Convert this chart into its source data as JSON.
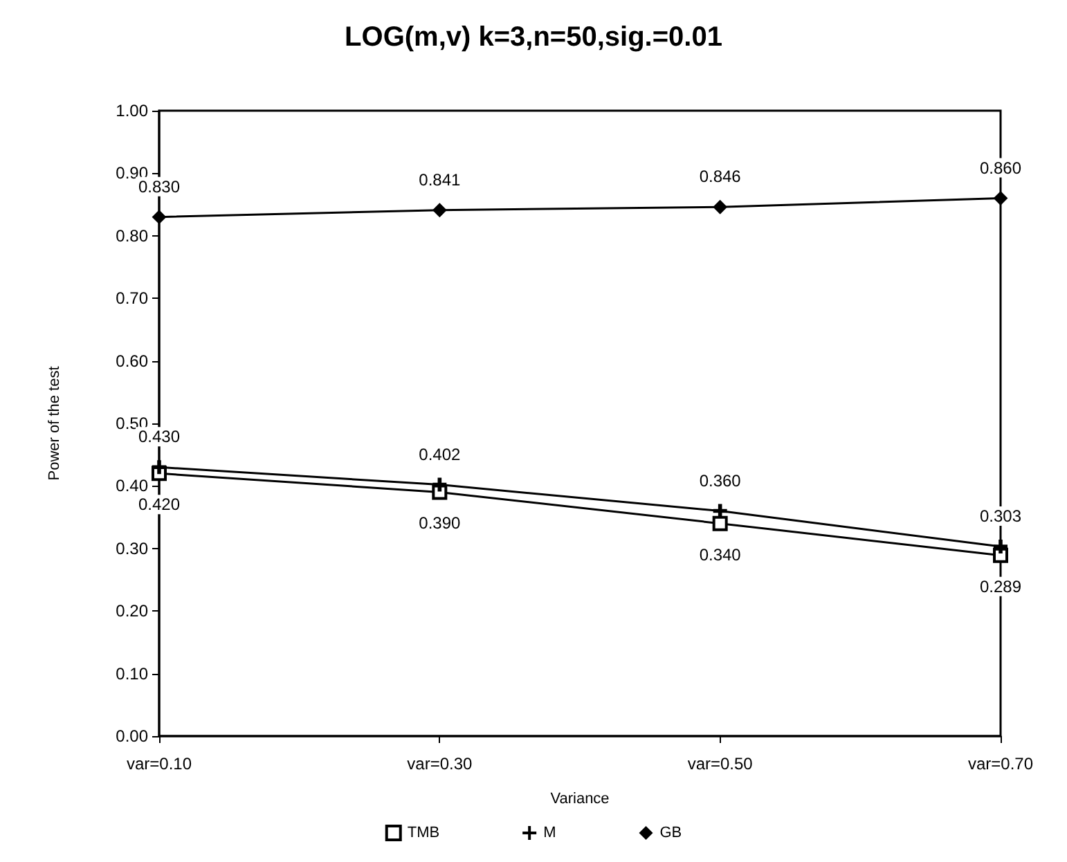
{
  "chart_data": {
    "type": "line",
    "title": "LOG(m,v) k=3,n=50,sig.=0.01",
    "xlabel": "Variance",
    "ylabel": "Power of the test",
    "categories": [
      "var=0.10",
      "var=0.30",
      "var=0.50",
      "var=0.70"
    ],
    "series": [
      {
        "name": "TMB",
        "color": "#000000",
        "marker": "square",
        "values": [
          0.42,
          0.39,
          0.34,
          0.289
        ],
        "value_labels": [
          "0.420",
          "0.390",
          "0.340",
          "0.289"
        ]
      },
      {
        "name": "M",
        "color": "#000000",
        "marker": "cross",
        "values": [
          0.43,
          0.402,
          0.36,
          0.303
        ],
        "value_labels": [
          "0.430",
          "0.402",
          "0.360",
          "0.303"
        ]
      },
      {
        "name": "GB",
        "color": "#000000",
        "marker": "diamond",
        "values": [
          0.83,
          0.841,
          0.846,
          0.86
        ],
        "value_labels": [
          "0.830",
          "0.841",
          "0.846",
          "0.860"
        ]
      }
    ],
    "ylim": [
      0,
      1
    ],
    "yticks": [
      {
        "value": 0,
        "label": "0.00"
      },
      {
        "value": 0.1,
        "label": "0.10"
      },
      {
        "value": 0.2,
        "label": "0.20"
      },
      {
        "value": 0.3,
        "label": "0.30"
      },
      {
        "value": 0.4,
        "label": "0.40"
      },
      {
        "value": 0.5,
        "label": "0.50"
      },
      {
        "value": 0.6,
        "label": "0.60"
      },
      {
        "value": 0.7,
        "label": "0.70"
      },
      {
        "value": 0.8,
        "label": "0.80"
      },
      {
        "value": 0.9,
        "label": "0.90"
      },
      {
        "value": 1,
        "label": "1.00"
      }
    ],
    "grid": false,
    "legend": "bottom",
    "line_style": "solid"
  }
}
